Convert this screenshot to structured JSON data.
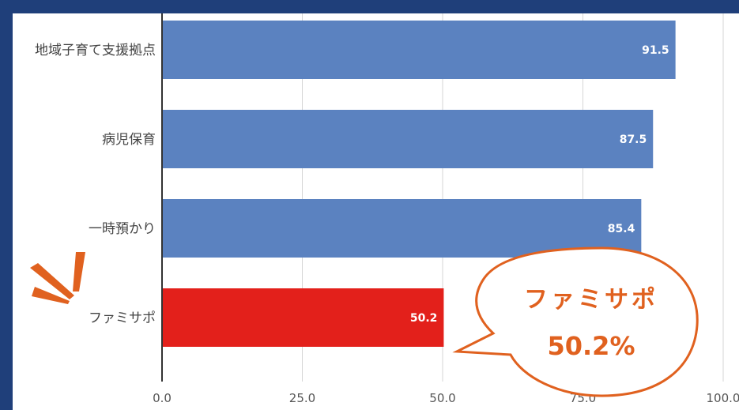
{
  "chart_data": {
    "type": "bar",
    "orientation": "horizontal",
    "categories": [
      "地域子育て支援拠点",
      "病児保育",
      "一時預かり",
      "ファミサポ"
    ],
    "values": [
      91.5,
      87.5,
      85.4,
      50.2
    ],
    "value_labels": [
      "91.5",
      "87.5",
      "85.4",
      "50.2"
    ],
    "bar_colors": [
      "#5b82c0",
      "#5b82c0",
      "#5b82c0",
      "#e3201b"
    ],
    "xlim": [
      0,
      100
    ],
    "x_ticks": [
      "0.0",
      "25.0",
      "50.0",
      "75.0",
      "100.0"
    ],
    "grid": true,
    "title": "",
    "xlabel": "",
    "ylabel": ""
  },
  "callout": {
    "line1": "ファミサポ",
    "line2": "50.2%",
    "color": "#e0611f"
  },
  "colors": {
    "frame": "#1f3f7a",
    "accent_lines": "#e0611f"
  }
}
